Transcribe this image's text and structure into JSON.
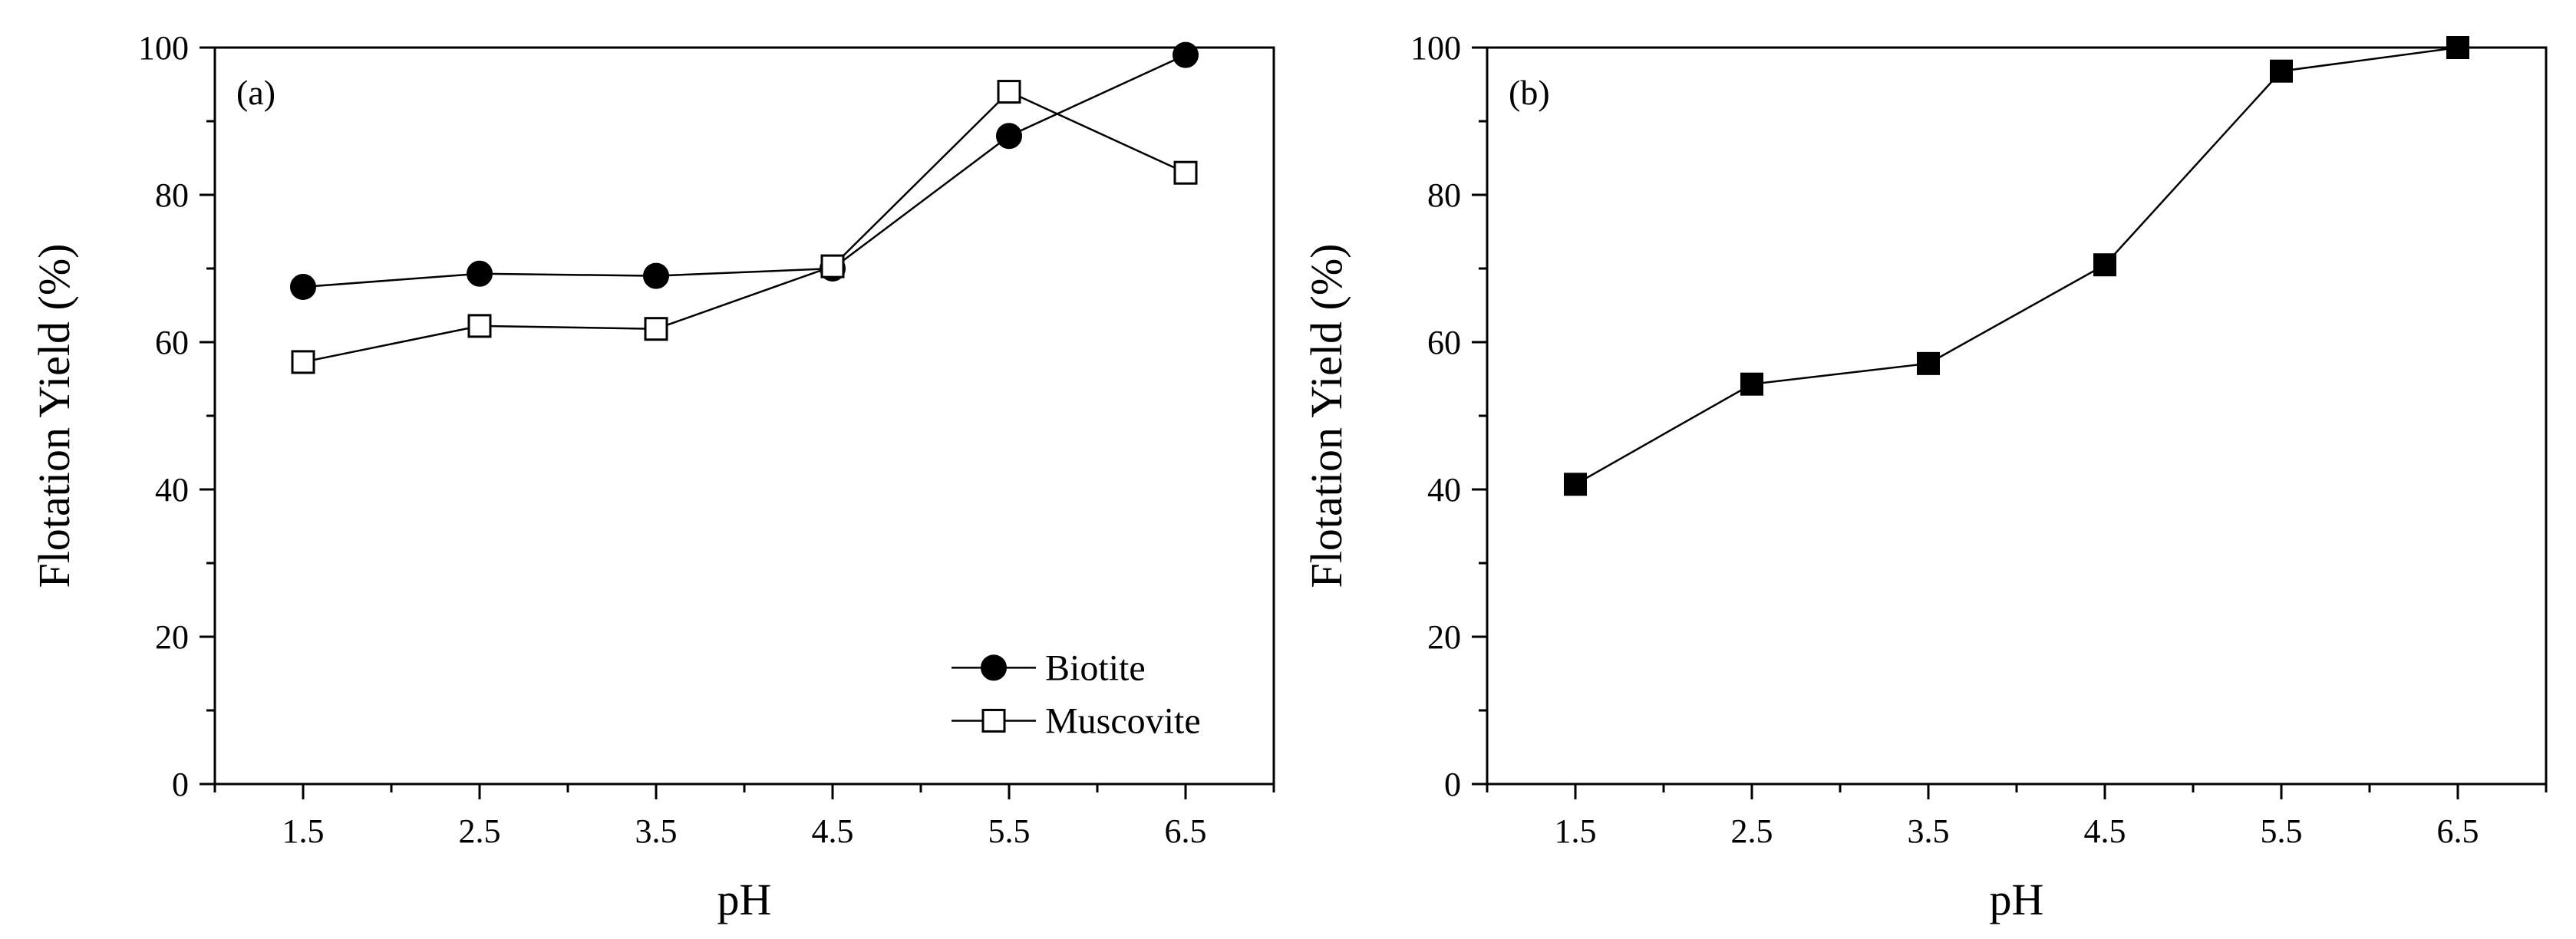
{
  "chart_data": [
    {
      "type": "line",
      "panel_label": "(a)",
      "xlabel": "pH",
      "ylabel": "Flotation Yield (%)",
      "x": [
        1.5,
        2.5,
        3.5,
        4.5,
        5.5,
        6.5
      ],
      "x_tick_labels": [
        "1.5",
        "2.5",
        "3.5",
        "4.5",
        "5.5",
        "6.5"
      ],
      "xlim": [
        1.0,
        7.0
      ],
      "ylim": [
        0,
        100
      ],
      "y_ticks": [
        0,
        20,
        40,
        60,
        80,
        100
      ],
      "y_tick_labels": [
        "0",
        "20",
        "40",
        "60",
        "80",
        "100"
      ],
      "legend_position": "bottom-right",
      "series": [
        {
          "name": "Biotite",
          "marker": "filled-circle",
          "color": "#000000",
          "values": [
            67.5,
            69.3,
            69.0,
            70.0,
            88.0,
            99.0
          ]
        },
        {
          "name": "Muscovite",
          "marker": "open-square",
          "color": "#000000",
          "values": [
            57.3,
            62.2,
            61.8,
            70.3,
            94.0,
            83.0
          ]
        }
      ]
    },
    {
      "type": "line",
      "panel_label": "(b)",
      "xlabel": "pH",
      "ylabel": "Flotation Yield (%)",
      "x": [
        1.5,
        2.5,
        3.5,
        4.5,
        5.5,
        6.5
      ],
      "x_tick_labels": [
        "1.5",
        "2.5",
        "3.5",
        "4.5",
        "5.5",
        "6.5"
      ],
      "xlim": [
        1.0,
        7.0
      ],
      "ylim": [
        0,
        100
      ],
      "y_ticks": [
        0,
        20,
        40,
        60,
        80,
        100
      ],
      "y_tick_labels": [
        "0",
        "20",
        "40",
        "60",
        "80",
        "100"
      ],
      "series": [
        {
          "name": "",
          "marker": "filled-square",
          "color": "#000000",
          "values": [
            40.7,
            54.3,
            57.1,
            70.5,
            96.8,
            100.0
          ]
        }
      ]
    }
  ]
}
